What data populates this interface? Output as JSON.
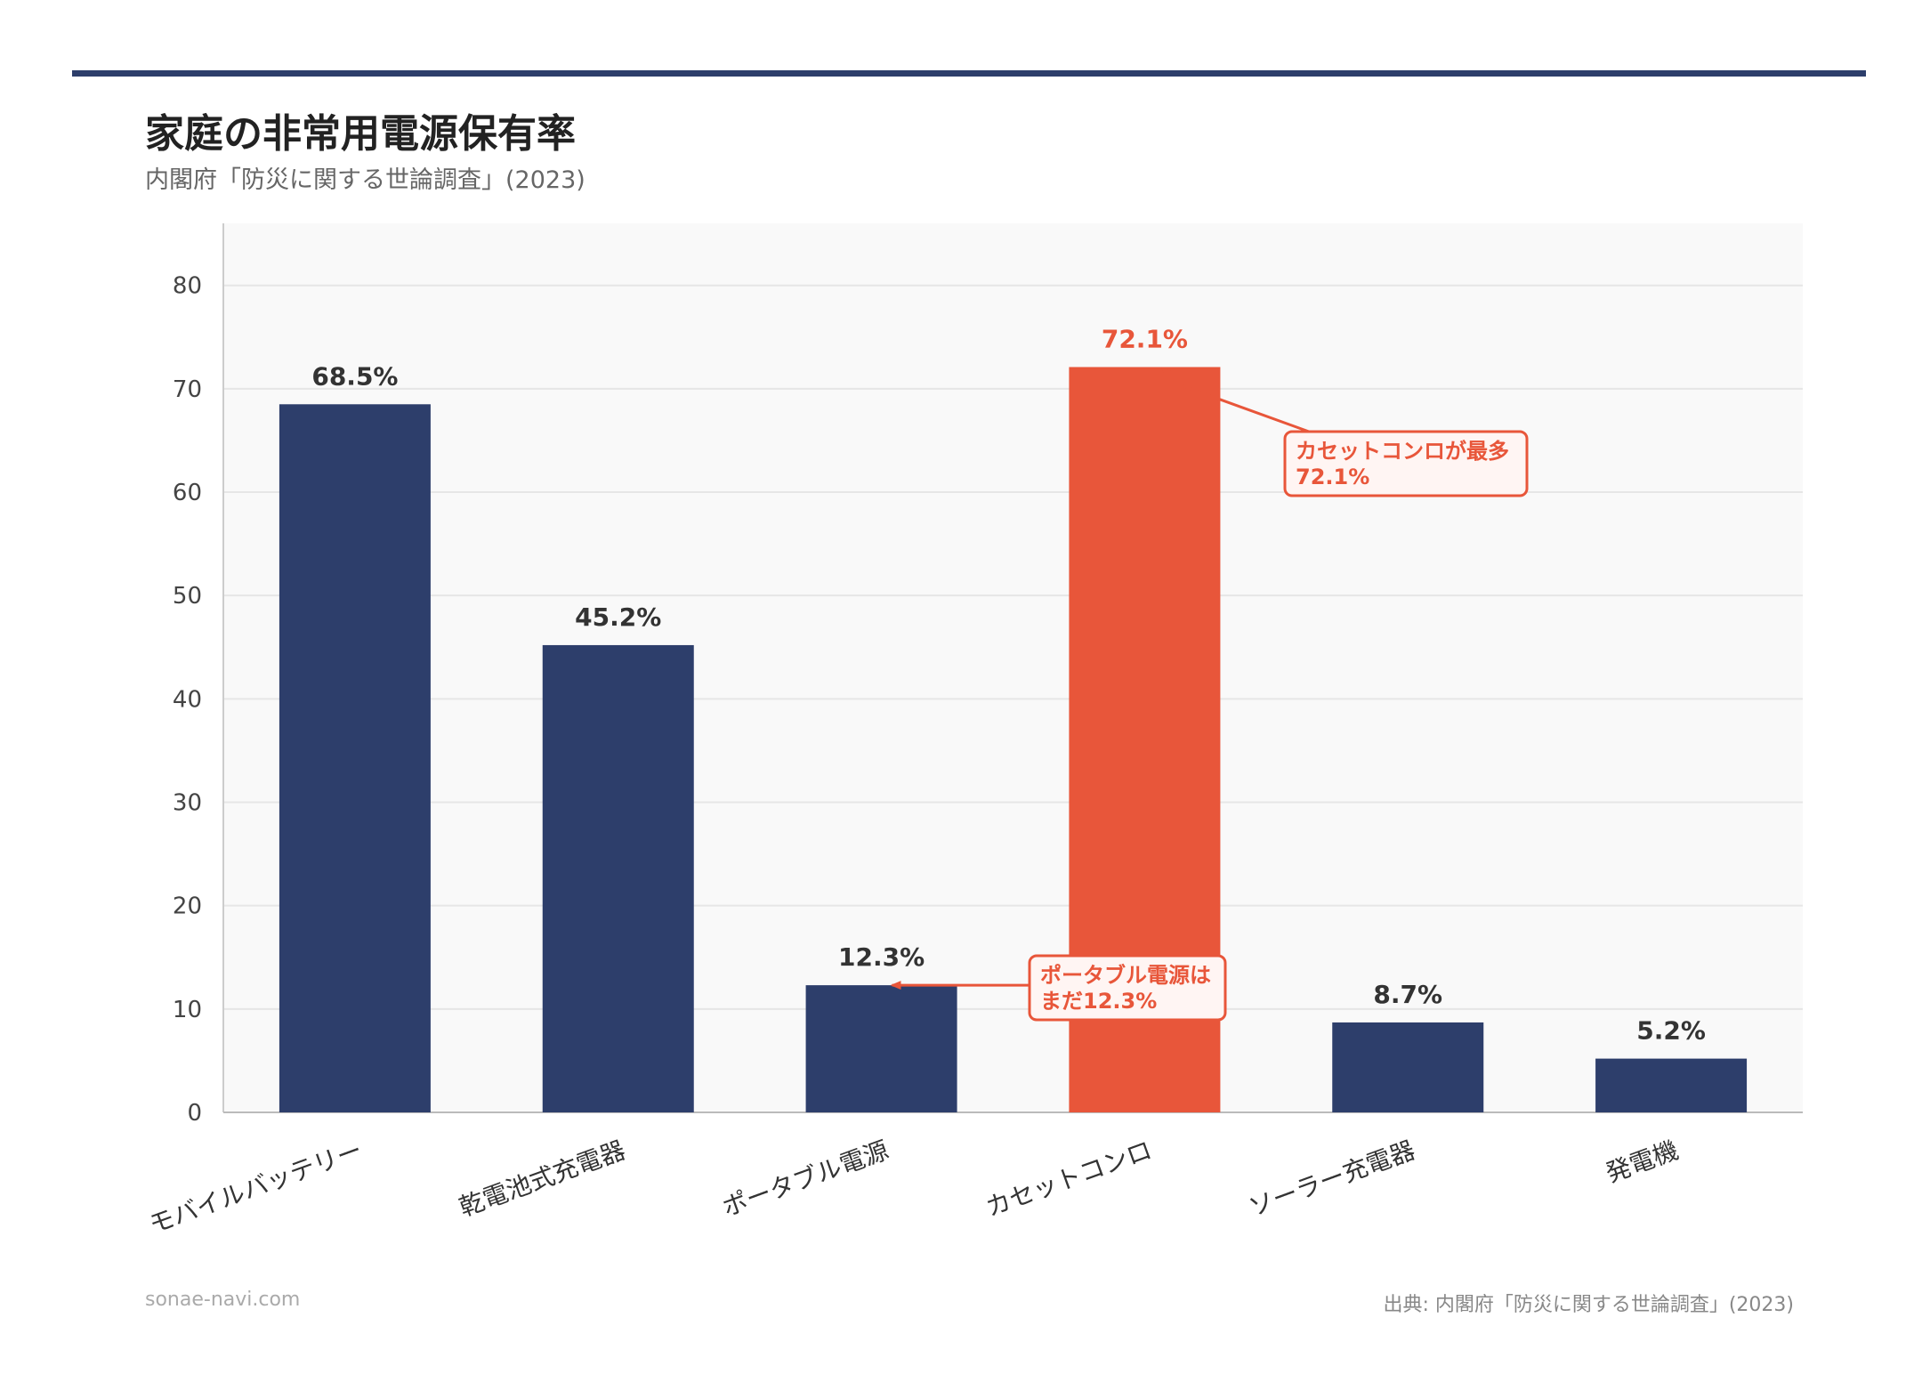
{
  "header": {
    "title": "家庭の非常用電源保有率",
    "subtitle": "内閣府「防災に関する世論調査」(2023)"
  },
  "footer": {
    "site": "sonae-navi.com",
    "source": "出典: 内閣府「防災に関する世論調査」(2023)"
  },
  "colors": {
    "bar": "#2d3e6b",
    "highlight": "#e8563a",
    "plot_bg": "#f9f9f9",
    "grid": "#e6e6e6",
    "rule": "#2d3e6b"
  },
  "chart_data": {
    "type": "bar",
    "categories": [
      "モバイルバッテリー",
      "乾電池式充電器",
      "ポータブル電源",
      "カセットコンロ",
      "ソーラー充電器",
      "発電機"
    ],
    "values": [
      68.5,
      45.2,
      12.3,
      72.1,
      8.7,
      5.2
    ],
    "value_labels": [
      "68.5%",
      "45.2%",
      "12.3%",
      "72.1%",
      "8.7%",
      "5.2%"
    ],
    "highlight_index": 3,
    "ylim": [
      0,
      86
    ],
    "yticks": [
      0,
      10,
      20,
      30,
      40,
      50,
      60,
      70,
      80
    ],
    "grid": true,
    "annotations": [
      {
        "target_index": 3,
        "lines": [
          "カセットコンロが最多",
          "72.1%"
        ]
      },
      {
        "target_index": 2,
        "lines": [
          "ポータブル電源は",
          "まだ12.3%"
        ]
      }
    ]
  }
}
